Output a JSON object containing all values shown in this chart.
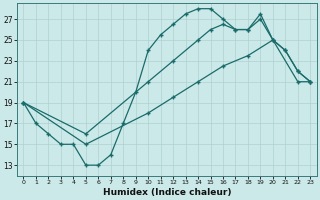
{
  "xlabel": "Humidex (Indice chaleur)",
  "bg_color": "#cce9e9",
  "grid_color": "#b0d0d0",
  "line_color": "#1a6b6b",
  "xlim": [
    -0.5,
    23.5
  ],
  "ylim": [
    12.0,
    28.5
  ],
  "xticks": [
    0,
    1,
    2,
    3,
    4,
    5,
    6,
    7,
    8,
    9,
    10,
    11,
    12,
    13,
    14,
    15,
    16,
    17,
    18,
    19,
    20,
    21,
    22,
    23
  ],
  "yticks": [
    13,
    15,
    17,
    19,
    21,
    23,
    25,
    27
  ],
  "line_wavy": {
    "x": [
      0,
      1,
      2,
      3,
      4,
      5,
      6,
      7,
      8,
      9,
      10,
      11,
      12,
      13,
      14,
      15,
      16,
      17,
      18,
      19,
      20,
      21,
      22,
      23
    ],
    "y": [
      19,
      17,
      16,
      15,
      15,
      13,
      13,
      14,
      17,
      20,
      24,
      25.5,
      26.5,
      27.5,
      28,
      28,
      27,
      26,
      26,
      27,
      25,
      24,
      22,
      21
    ]
  },
  "line_upper_diag": {
    "x": [
      0,
      5,
      10,
      12,
      14,
      15,
      16,
      17,
      18,
      19,
      20,
      21,
      22,
      23
    ],
    "y": [
      19,
      16,
      21,
      23,
      25,
      26,
      26.5,
      26,
      26,
      27.5,
      25,
      24,
      22,
      21
    ]
  },
  "line_lower_diag": {
    "x": [
      0,
      5,
      10,
      12,
      14,
      16,
      18,
      20,
      22,
      23
    ],
    "y": [
      19,
      15,
      18,
      19.5,
      21,
      22.5,
      23.5,
      25,
      21,
      21
    ]
  }
}
